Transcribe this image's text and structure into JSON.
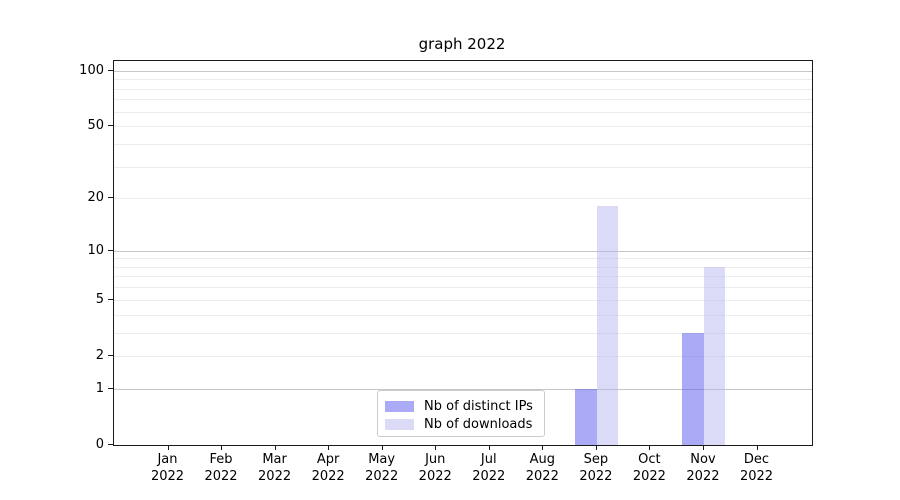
{
  "chart_data": {
    "type": "bar",
    "title": "graph 2022",
    "yscale": "log1p",
    "ylim": [
      0,
      113
    ],
    "yticks": [
      0,
      1,
      2,
      5,
      10,
      20,
      50,
      100
    ],
    "grid": {
      "major": [
        1,
        10,
        100
      ],
      "minor": [
        2,
        3,
        4,
        5,
        6,
        7,
        8,
        9,
        20,
        30,
        40,
        50,
        60,
        70,
        80,
        90
      ]
    },
    "categories": [
      "Jan",
      "Feb",
      "Mar",
      "Apr",
      "May",
      "Jun",
      "Jul",
      "Aug",
      "Sep",
      "Oct",
      "Nov",
      "Dec"
    ],
    "year": "2022",
    "series": [
      {
        "name": "Nb of distinct IPs",
        "color": "rgba(85,85,240,0.5)",
        "values": [
          0,
          0,
          0,
          0,
          0,
          0,
          0,
          0,
          1,
          0,
          3,
          0
        ]
      },
      {
        "name": "Nb of downloads",
        "color": "rgba(183,183,241,0.5)",
        "values": [
          0,
          0,
          0,
          0,
          0,
          0,
          0,
          0,
          18,
          0,
          8,
          0
        ]
      }
    ],
    "legend_position": "lower center"
  },
  "colors": {
    "major_grid": "#c6c6c6",
    "minor_grid": "#ececec",
    "spine": "#1a1a1a",
    "text": "#000000"
  }
}
